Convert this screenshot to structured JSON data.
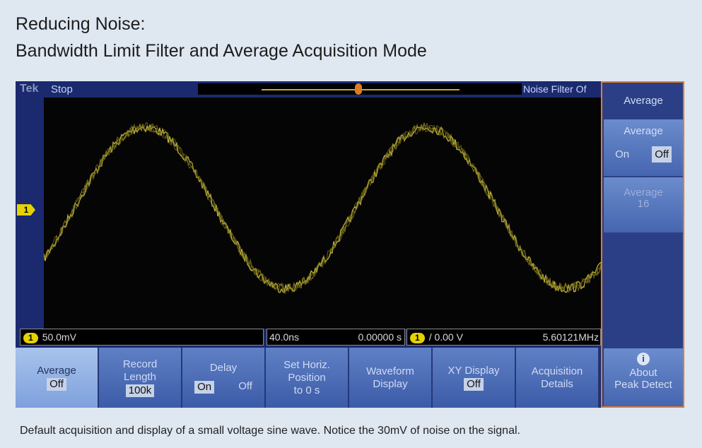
{
  "header": {
    "title": [
      "Reducing Noise:",
      "Bandwidth Limit Filter and Average Acquisition Mode"
    ]
  },
  "scope": {
    "brand": "Tek",
    "state": "Stop",
    "trigger_status": "Noise Filter Of",
    "channel_marker": "1",
    "readout": {
      "channel": "1",
      "scale": "50.0mV",
      "timebase": "40.0ns",
      "position": "0.00000 s",
      "trigger_channel": "1",
      "trigger_level": "/ 0.00 V",
      "frequency": "5.60121MHz"
    },
    "side_menu": {
      "title": "Average",
      "average_label": "Average",
      "on": "On",
      "off": "Off",
      "average_count": [
        "Average",
        "16"
      ],
      "about_icon": "i",
      "about": [
        "About",
        "Peak Detect"
      ]
    },
    "bottom_menu": [
      {
        "label": [
          "Average"
        ],
        "value": "Off"
      },
      {
        "label": [
          "Record",
          "Length"
        ],
        "value": "100k"
      },
      {
        "label": [
          "Delay"
        ],
        "options": [
          "On",
          "Off"
        ]
      },
      {
        "label": [
          "Set Horiz.",
          "Position",
          "to 0 s"
        ]
      },
      {
        "label": [
          "Waveform",
          "Display"
        ]
      },
      {
        "label": [
          "XY Display"
        ],
        "value": "Off"
      },
      {
        "label": [
          "Acquisition",
          "Details"
        ]
      }
    ]
  },
  "caption": "Default acquisition and display of a small voltage sine wave. Notice the 30mV of noise on the signal."
}
